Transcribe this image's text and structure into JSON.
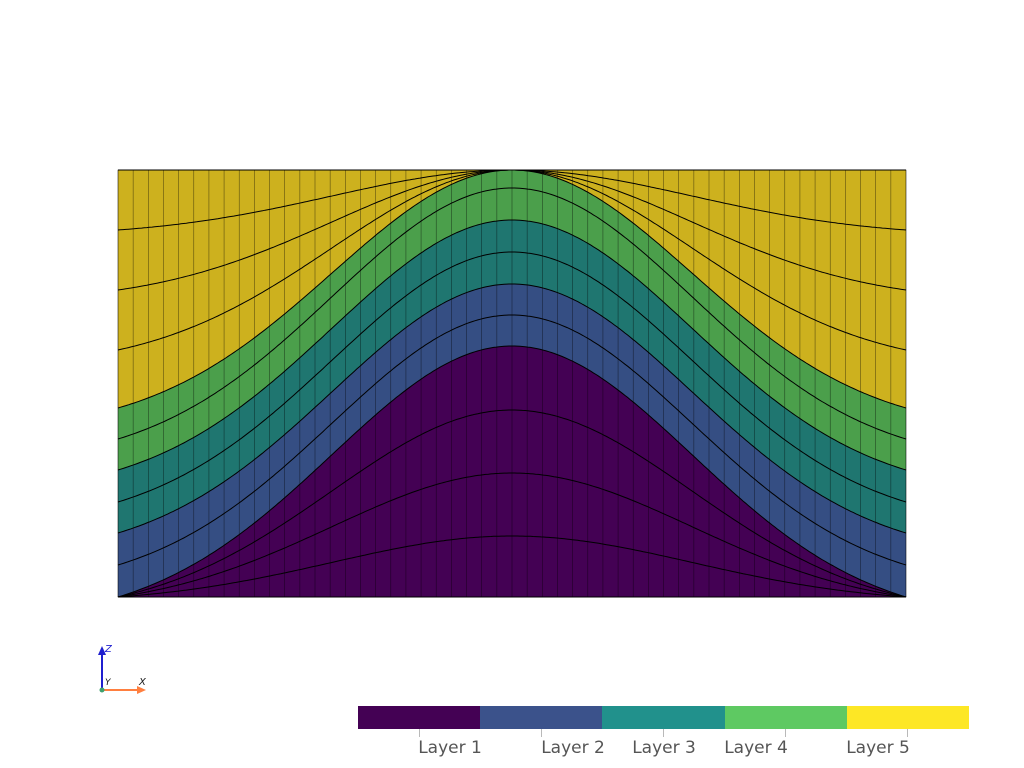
{
  "scene": {
    "background": "#ffffff",
    "edge_color": "#000000",
    "layer_colors": [
      "#440154",
      "#3b528b",
      "#21918c",
      "#5ec962",
      "#fde725"
    ],
    "mesh_layer_colors": [
      "#440154",
      "#354e83",
      "#1f7670",
      "#4b9f4b",
      "#cdb11e"
    ]
  },
  "orientation_axes": {
    "x_label": "X",
    "y_label": "Y",
    "z_label": "Z",
    "x_color": "#ff7f3f",
    "y_color": "#3fa06f",
    "z_color": "#1f1fcf"
  },
  "colorbar": {
    "labels": [
      "Layer 1",
      "Layer 2",
      "Layer 3",
      "Layer 4",
      "Layer 5"
    ],
    "colors": [
      "#440154",
      "#3b528b",
      "#21918c",
      "#5ec962",
      "#fde725"
    ]
  }
}
